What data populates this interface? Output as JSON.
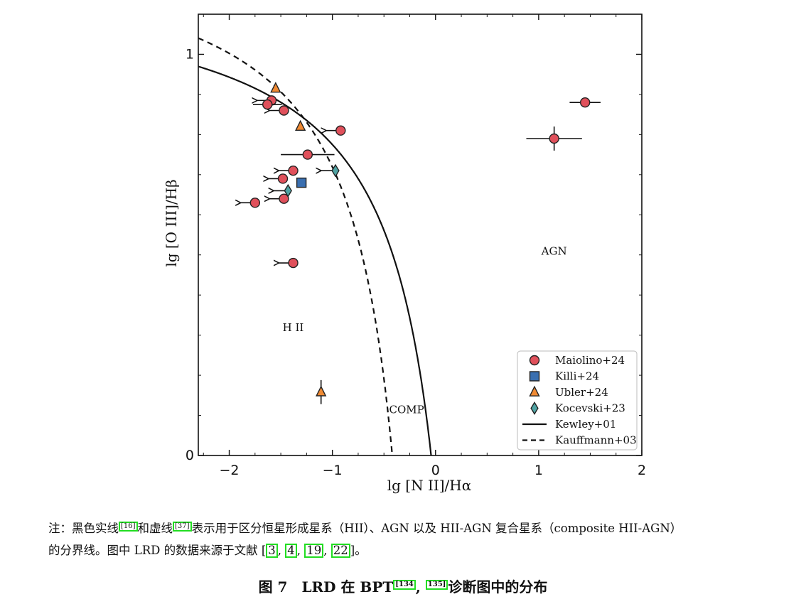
{
  "chart_data": {
    "type": "scatter",
    "xlabel": "lg [N II]/Hα",
    "ylabel": "lg [O III]/Hβ",
    "xlim": [
      -2.3,
      2
    ],
    "ylim": [
      0,
      1.1
    ],
    "x_ticks": [
      -2,
      -1,
      0,
      1,
      2
    ],
    "x_tick_labels": [
      "−2",
      "−1",
      "0",
      "1",
      "2"
    ],
    "y_ticks": [
      0,
      1
    ],
    "y_tick_labels": [
      "0",
      "1"
    ],
    "grid": false,
    "legend_position": "bottom-right",
    "region_labels": [
      {
        "text": "H II",
        "x": -1.38,
        "y": 0.31
      },
      {
        "text": "AGN",
        "x": 1.15,
        "y": 0.5
      },
      {
        "text": "COMP",
        "x": -0.28,
        "y": 0.105
      }
    ],
    "series": [
      {
        "name": "Maiolino+24",
        "marker": "circle",
        "color": "#e0505b",
        "points": [
          {
            "x": 1.45,
            "y": 0.88,
            "xerr": 0.15,
            "yerr": 0
          },
          {
            "x": 1.15,
            "y": 0.79,
            "xerr": 0.27,
            "yerr": 0.03
          },
          {
            "x": -0.92,
            "y": 0.81,
            "upper_limit_x": true
          },
          {
            "x": -1.24,
            "y": 0.75,
            "xerr": 0.26,
            "yerr": 0
          },
          {
            "x": -1.38,
            "y": 0.71,
            "upper_limit_x": true
          },
          {
            "x": -1.48,
            "y": 0.69,
            "upper_limit_x": true
          },
          {
            "x": -1.47,
            "y": 0.64,
            "upper_limit_x": true
          },
          {
            "x": -1.75,
            "y": 0.63,
            "upper_limit_x": true
          },
          {
            "x": -1.38,
            "y": 0.48,
            "upper_limit_x": true
          },
          {
            "x": -1.47,
            "y": 0.86,
            "upper_limit_x": true
          },
          {
            "x": -1.59,
            "y": 0.885,
            "upper_limit_x": true
          },
          {
            "x": -1.63,
            "y": 0.875,
            "xerr": 0.14,
            "yerr": 0
          }
        ]
      },
      {
        "name": "Killi+24",
        "marker": "square",
        "color": "#3a6fb0",
        "points": [
          {
            "x": -1.3,
            "y": 0.68
          }
        ]
      },
      {
        "name": "Ubler+24",
        "marker": "triangle",
        "color": "#f08a33",
        "points": [
          {
            "x": -1.55,
            "y": 0.915,
            "yerr": 0
          },
          {
            "x": -1.31,
            "y": 0.82
          },
          {
            "x": -1.11,
            "y": 0.158,
            "yerr": 0.03
          }
        ]
      },
      {
        "name": "Kocevski+23",
        "marker": "diamond",
        "color": "#4fa3a3",
        "points": [
          {
            "x": -0.97,
            "y": 0.71,
            "upper_limit_x": true
          },
          {
            "x": -1.43,
            "y": 0.66,
            "upper_limit_x": true
          }
        ]
      }
    ],
    "lines": [
      {
        "name": "Kewley+01",
        "style": "solid",
        "formula": "y = 0.61/(x - 0.47) + 1.19"
      },
      {
        "name": "Kauffmann+03",
        "style": "dashed",
        "formula": "y = 0.61/(x - 0.05) + 1.3"
      }
    ]
  },
  "note": {
    "prefix": "注：黑色实线",
    "ref_kewley": "[16]",
    "mid1": "和虚线",
    "ref_kauff": "[37]",
    "text1": "表示用于区分恒星形成星系（HII）、AGN 以及 HII-AGN 复合星系（composite HII-AGN）",
    "text2_a": "的分界线。图中 LRD 的数据来源于文献 [",
    "refs": [
      "3",
      "4",
      "19",
      "22"
    ],
    "text2_b": "]。"
  },
  "caption": {
    "prefix": "图 7　LRD 在 BPT",
    "sup_a": "[134",
    "sup_b": "135]",
    "suffix": "诊断图中的分布"
  }
}
